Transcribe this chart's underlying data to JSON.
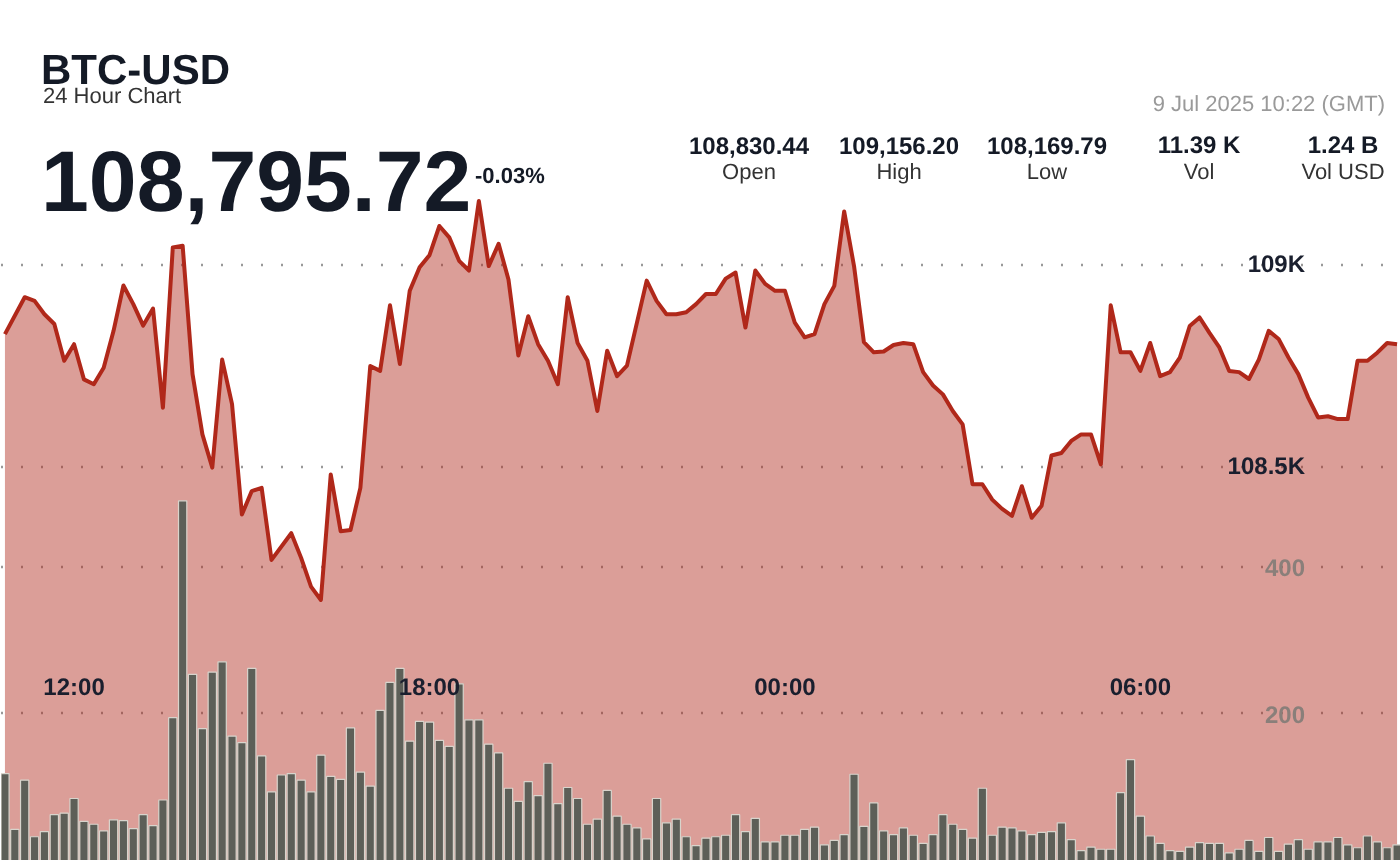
{
  "chart_data": {
    "type": "area",
    "title": "BTC-USD",
    "subtitle": "24 Hour Chart",
    "annotations": [
      "108,795.72",
      "-0.03%",
      "108,830.44",
      "Open",
      "109,156.20",
      "High",
      "108,169.79",
      "Low",
      "11.39 K",
      "Vol",
      "1.24 B",
      "Vol USD",
      "9 Jul 2025 10:22 (GMT)"
    ],
    "xlim": [
      "2025-07-08T10:46",
      "2025-07-09T10:24"
    ],
    "xticks": [
      {
        "value": "2025-07-08T12:00",
        "label": "12:00"
      },
      {
        "value": "2025-07-08T18:00",
        "label": "18:00"
      },
      {
        "value": "2025-07-09T00:00",
        "label": "00:00"
      },
      {
        "value": "2025-07-09T06:00",
        "label": "06:00"
      }
    ],
    "ylim": [
      107525,
      109650
    ],
    "yticks": [
      {
        "value": 108500,
        "label": "108.5K"
      },
      {
        "value": 109000,
        "label": "109K"
      }
    ],
    "y2lim": [
      0,
      1170
    ],
    "y2ticks": [
      200,
      400
    ],
    "grid": "y",
    "x": [
      "2025-07-08T10:50",
      "2025-07-08T11:00",
      "2025-07-08T11:10",
      "2025-07-08T11:20",
      "2025-07-08T11:30",
      "2025-07-08T11:40",
      "2025-07-08T11:50",
      "2025-07-08T12:00",
      "2025-07-08T12:10",
      "2025-07-08T12:20",
      "2025-07-08T12:30",
      "2025-07-08T12:40",
      "2025-07-08T12:50",
      "2025-07-08T13:00",
      "2025-07-08T13:10",
      "2025-07-08T13:20",
      "2025-07-08T13:30",
      "2025-07-08T13:40",
      "2025-07-08T13:50",
      "2025-07-08T14:00",
      "2025-07-08T14:10",
      "2025-07-08T14:20",
      "2025-07-08T14:30",
      "2025-07-08T14:40",
      "2025-07-08T14:50",
      "2025-07-08T15:00",
      "2025-07-08T15:10",
      "2025-07-08T15:20",
      "2025-07-08T15:30",
      "2025-07-08T15:40",
      "2025-07-08T15:50",
      "2025-07-08T16:00",
      "2025-07-08T16:10",
      "2025-07-08T16:20",
      "2025-07-08T16:30",
      "2025-07-08T16:40",
      "2025-07-08T16:50",
      "2025-07-08T17:00",
      "2025-07-08T17:10",
      "2025-07-08T17:20",
      "2025-07-08T17:30",
      "2025-07-08T17:40",
      "2025-07-08T17:50",
      "2025-07-08T18:00",
      "2025-07-08T18:10",
      "2025-07-08T18:20",
      "2025-07-08T18:30",
      "2025-07-08T18:40",
      "2025-07-08T18:50",
      "2025-07-08T19:00",
      "2025-07-08T19:10",
      "2025-07-08T19:20",
      "2025-07-08T19:30",
      "2025-07-08T19:40",
      "2025-07-08T19:50",
      "2025-07-08T20:00",
      "2025-07-08T20:10",
      "2025-07-08T20:20",
      "2025-07-08T20:30",
      "2025-07-08T20:40",
      "2025-07-08T20:50",
      "2025-07-08T21:00",
      "2025-07-08T21:10",
      "2025-07-08T21:20",
      "2025-07-08T21:30",
      "2025-07-08T21:40",
      "2025-07-08T21:50",
      "2025-07-08T22:00",
      "2025-07-08T22:10",
      "2025-07-08T22:20",
      "2025-07-08T22:30",
      "2025-07-08T22:40",
      "2025-07-08T22:50",
      "2025-07-08T23:00",
      "2025-07-08T23:10",
      "2025-07-08T23:20",
      "2025-07-08T23:30",
      "2025-07-08T23:40",
      "2025-07-08T23:50",
      "2025-07-09T00:00",
      "2025-07-09T00:10",
      "2025-07-09T00:20",
      "2025-07-09T00:30",
      "2025-07-09T00:40",
      "2025-07-09T00:50",
      "2025-07-09T01:00",
      "2025-07-09T01:10",
      "2025-07-09T01:20",
      "2025-07-09T01:30",
      "2025-07-09T01:40",
      "2025-07-09T01:50",
      "2025-07-09T02:00",
      "2025-07-09T02:10",
      "2025-07-09T02:20",
      "2025-07-09T02:30",
      "2025-07-09T02:40",
      "2025-07-09T02:50",
      "2025-07-09T03:00",
      "2025-07-09T03:10",
      "2025-07-09T03:20",
      "2025-07-09T03:30",
      "2025-07-09T03:40",
      "2025-07-09T03:50",
      "2025-07-09T04:00",
      "2025-07-09T04:10",
      "2025-07-09T04:20",
      "2025-07-09T04:30",
      "2025-07-09T04:40",
      "2025-07-09T04:50",
      "2025-07-09T05:00",
      "2025-07-09T05:10",
      "2025-07-09T05:20",
      "2025-07-09T05:30",
      "2025-07-09T05:40",
      "2025-07-09T05:50",
      "2025-07-09T06:00",
      "2025-07-09T06:10",
      "2025-07-09T06:20",
      "2025-07-09T06:30",
      "2025-07-09T06:40",
      "2025-07-09T06:50",
      "2025-07-09T07:00",
      "2025-07-09T07:10",
      "2025-07-09T07:20",
      "2025-07-09T07:30",
      "2025-07-09T07:40",
      "2025-07-09T07:50",
      "2025-07-09T08:00",
      "2025-07-09T08:10",
      "2025-07-09T08:20",
      "2025-07-09T08:30",
      "2025-07-09T08:40",
      "2025-07-09T08:50",
      "2025-07-09T09:00",
      "2025-07-09T09:10",
      "2025-07-09T09:20",
      "2025-07-09T09:30",
      "2025-07-09T09:40",
      "2025-07-09T09:50",
      "2025-07-09T10:00",
      "2025-07-09T10:10",
      "2025-07-09T10:20"
    ],
    "series": [
      {
        "color": "#b0281a",
        "x": [
          "2025-07-08T10:50",
          "2025-07-08T11:10",
          "2025-07-08T11:20",
          "2025-07-08T11:30",
          "2025-07-08T11:40",
          "2025-07-08T11:50",
          "2025-07-08T12:00",
          "2025-07-08T12:10",
          "2025-07-08T12:20",
          "2025-07-08T12:30",
          "2025-07-08T12:40",
          "2025-07-08T12:50",
          "2025-07-08T13:00",
          "2025-07-08T13:10",
          "2025-07-08T13:20",
          "2025-07-08T13:30",
          "2025-07-08T13:40",
          "2025-07-08T13:50",
          "2025-07-08T14:00",
          "2025-07-08T14:10",
          "2025-07-08T14:20",
          "2025-07-08T14:30",
          "2025-07-08T14:40",
          "2025-07-08T14:50",
          "2025-07-08T15:00",
          "2025-07-08T15:10",
          "2025-07-08T15:20",
          "2025-07-08T15:40",
          "2025-07-08T15:50",
          "2025-07-08T16:00",
          "2025-07-08T16:10",
          "2025-07-08T16:20",
          "2025-07-08T16:30",
          "2025-07-08T16:40",
          "2025-07-08T16:50",
          "2025-07-08T17:00",
          "2025-07-08T17:10",
          "2025-07-08T17:20",
          "2025-07-08T17:30",
          "2025-07-08T17:40",
          "2025-07-08T17:50",
          "2025-07-08T18:00",
          "2025-07-08T18:10",
          "2025-07-08T18:20",
          "2025-07-08T18:30",
          "2025-07-08T18:40",
          "2025-07-08T18:50",
          "2025-07-08T19:00",
          "2025-07-08T19:10",
          "2025-07-08T19:20",
          "2025-07-08T19:30",
          "2025-07-08T19:40",
          "2025-07-08T19:50",
          "2025-07-08T20:00",
          "2025-07-08T20:10",
          "2025-07-08T20:20",
          "2025-07-08T20:30",
          "2025-07-08T20:40",
          "2025-07-08T20:50",
          "2025-07-08T21:00",
          "2025-07-08T21:10",
          "2025-07-08T21:20",
          "2025-07-08T21:40",
          "2025-07-08T21:50",
          "2025-07-08T22:00",
          "2025-07-08T22:10",
          "2025-07-08T22:20",
          "2025-07-08T22:30",
          "2025-07-08T22:40",
          "2025-07-08T22:50",
          "2025-07-08T23:00",
          "2025-07-08T23:10",
          "2025-07-08T23:20",
          "2025-07-08T23:30",
          "2025-07-08T23:40",
          "2025-07-08T23:50",
          "2025-07-09T00:00",
          "2025-07-09T00:10",
          "2025-07-09T00:20",
          "2025-07-09T00:30",
          "2025-07-09T00:40",
          "2025-07-09T00:50",
          "2025-07-09T01:00",
          "2025-07-09T01:10",
          "2025-07-09T01:20",
          "2025-07-09T01:30",
          "2025-07-09T01:40",
          "2025-07-09T01:50",
          "2025-07-09T02:00",
          "2025-07-09T02:10",
          "2025-07-09T02:20",
          "2025-07-09T02:30",
          "2025-07-09T02:40",
          "2025-07-09T02:50",
          "2025-07-09T03:00",
          "2025-07-09T03:10",
          "2025-07-09T03:20",
          "2025-07-09T03:30",
          "2025-07-09T03:40",
          "2025-07-09T03:50",
          "2025-07-09T04:00",
          "2025-07-09T04:10",
          "2025-07-09T04:20",
          "2025-07-09T04:30",
          "2025-07-09T04:40",
          "2025-07-09T04:50",
          "2025-07-09T05:00",
          "2025-07-09T05:10",
          "2025-07-09T05:20",
          "2025-07-09T05:30",
          "2025-07-09T05:40",
          "2025-07-09T05:50",
          "2025-07-09T06:00",
          "2025-07-09T06:10",
          "2025-07-09T06:20",
          "2025-07-09T06:30",
          "2025-07-09T06:40",
          "2025-07-09T06:50",
          "2025-07-09T07:00",
          "2025-07-09T07:10",
          "2025-07-09T07:20",
          "2025-07-09T07:30",
          "2025-07-09T07:40",
          "2025-07-09T07:50",
          "2025-07-09T08:00",
          "2025-07-09T08:10",
          "2025-07-09T08:20",
          "2025-07-09T08:30",
          "2025-07-09T08:40",
          "2025-07-09T08:50",
          "2025-07-09T09:00",
          "2025-07-09T09:10",
          "2025-07-09T09:20",
          "2025-07-09T09:30",
          "2025-07-09T09:40",
          "2025-07-09T09:50",
          "2025-07-09T10:00",
          "2025-07-09T10:10",
          "2025-07-09T10:20"
        ],
        "values": [
          108827,
          108918,
          108909,
          108876,
          108852,
          108761,
          108802,
          108715,
          108703,
          108744,
          108835,
          108947,
          108901,
          108848,
          108890,
          108645,
          109041,
          109045,
          108728,
          108579,
          108497,
          108764,
          108654,
          108381,
          108439,
          108447,
          108269,
          108335,
          108274,
          108203,
          108170,
          108480,
          108340,
          108343,
          108447,
          108748,
          108736,
          108898,
          108753,
          108934,
          108992,
          109022,
          109094,
          109066,
          109008,
          108984,
          109156,
          108995,
          109050,
          108962,
          108774,
          108871,
          108802,
          108761,
          108703,
          108918,
          108805,
          108761,
          108637,
          108786,
          108723,
          108749,
          108959,
          108909,
          108876,
          108876,
          108881,
          108901,
          108926,
          108926,
          108964,
          108979,
          108843,
          108984,
          108951,
          108934,
          108934,
          108855,
          108819,
          108827,
          108901,
          108946,
          109130,
          108995,
          108807,
          108782,
          108784,
          108800,
          108805,
          108802,
          108733,
          108700,
          108678,
          108637,
          108604,
          108456,
          108456,
          108418,
          108395,
          108378,
          108451,
          108373,
          108403,
          108527,
          108533,
          108563,
          108579,
          108579,
          108505,
          108898,
          108782,
          108782,
          108736,
          108805,
          108723,
          108733,
          108769,
          108847,
          108868,
          108830,
          108794,
          108736,
          108733,
          108716,
          108764,
          108835,
          108815,
          108769,
          108728,
          108670,
          108621,
          108624,
          108617,
          108617,
          108761,
          108761,
          108781,
          108805,
          108802
        ]
      },
      {
        "type": "bar",
        "axis": "y2",
        "color": "#5d5f58",
        "values": [
          119,
          43,
          110,
          33,
          40,
          63,
          65,
          85,
          54,
          50,
          41,
          56,
          55,
          44,
          63,
          48,
          83,
          195,
          490,
          254,
          180,
          257,
          271,
          170,
          161,
          262,
          143,
          94,
          117,
          119,
          110,
          94,
          144,
          115,
          111,
          181,
          121,
          102,
          205,
          243,
          262,
          163,
          190,
          189,
          164,
          156,
          241,
          192,
          192,
          159,
          147,
          99,
          81,
          108,
          89,
          133,
          78,
          100,
          85,
          50,
          57,
          96,
          61,
          50,
          45,
          30,
          85,
          52,
          57,
          33,
          21,
          31,
          33,
          35,
          63,
          40,
          58,
          26,
          26,
          35,
          35,
          43,
          46,
          22,
          28,
          36,
          118,
          47,
          79,
          41,
          36,
          45,
          35,
          24,
          36,
          63,
          50,
          43,
          31,
          99,
          35,
          46,
          45,
          41,
          36,
          39,
          40,
          52,
          29,
          14,
          19,
          16,
          16,
          93,
          138,
          61,
          34,
          24,
          14,
          13,
          19,
          25,
          24,
          24,
          11,
          16,
          28,
          13,
          32,
          13,
          23,
          29,
          16,
          26,
          26,
          32,
          22,
          18,
          34,
          26,
          18,
          22
        ]
      }
    ]
  }
}
